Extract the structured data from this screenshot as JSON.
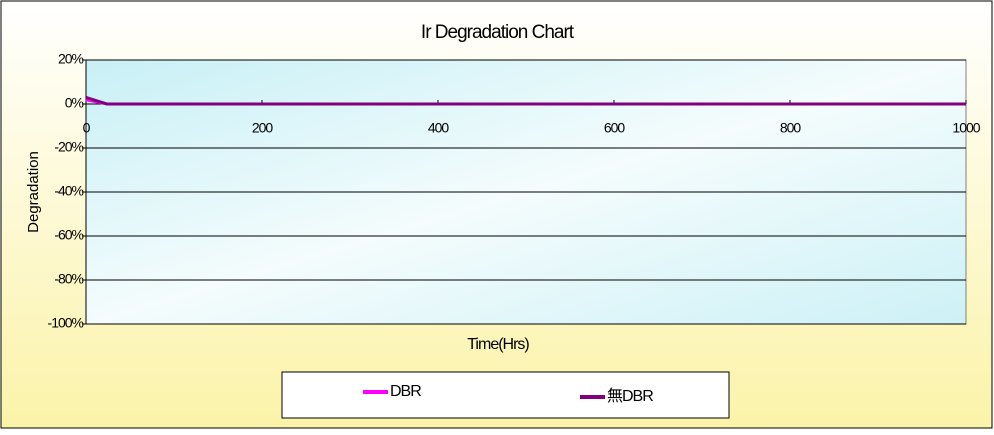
{
  "chart_data": {
    "type": "line",
    "title": "Ir Degradation Chart",
    "x_label": "Time(Hrs)",
    "y_label": "Degradation",
    "x": [
      0,
      24,
      1000
    ],
    "series": [
      {
        "name": "DBR",
        "color": "#ff00ff",
        "values": [
          2,
          0,
          0
        ]
      },
      {
        "name": "無DBR",
        "color": "#800080",
        "values": [
          3,
          0,
          0
        ]
      }
    ],
    "xlim": [
      0,
      1000
    ],
    "xticks": [
      0,
      200,
      400,
      600,
      800,
      1000
    ],
    "ylim": [
      -100,
      20
    ],
    "yticks": [
      {
        "value": 20,
        "label": "20%"
      },
      {
        "value": 0,
        "label": "0%"
      },
      {
        "value": -20,
        "label": "-20%"
      },
      {
        "value": -40,
        "label": "-40%"
      },
      {
        "value": -60,
        "label": "-60%"
      },
      {
        "value": -80,
        "label": "-80%"
      },
      {
        "value": -100,
        "label": "-100%"
      }
    ],
    "grid": true
  }
}
